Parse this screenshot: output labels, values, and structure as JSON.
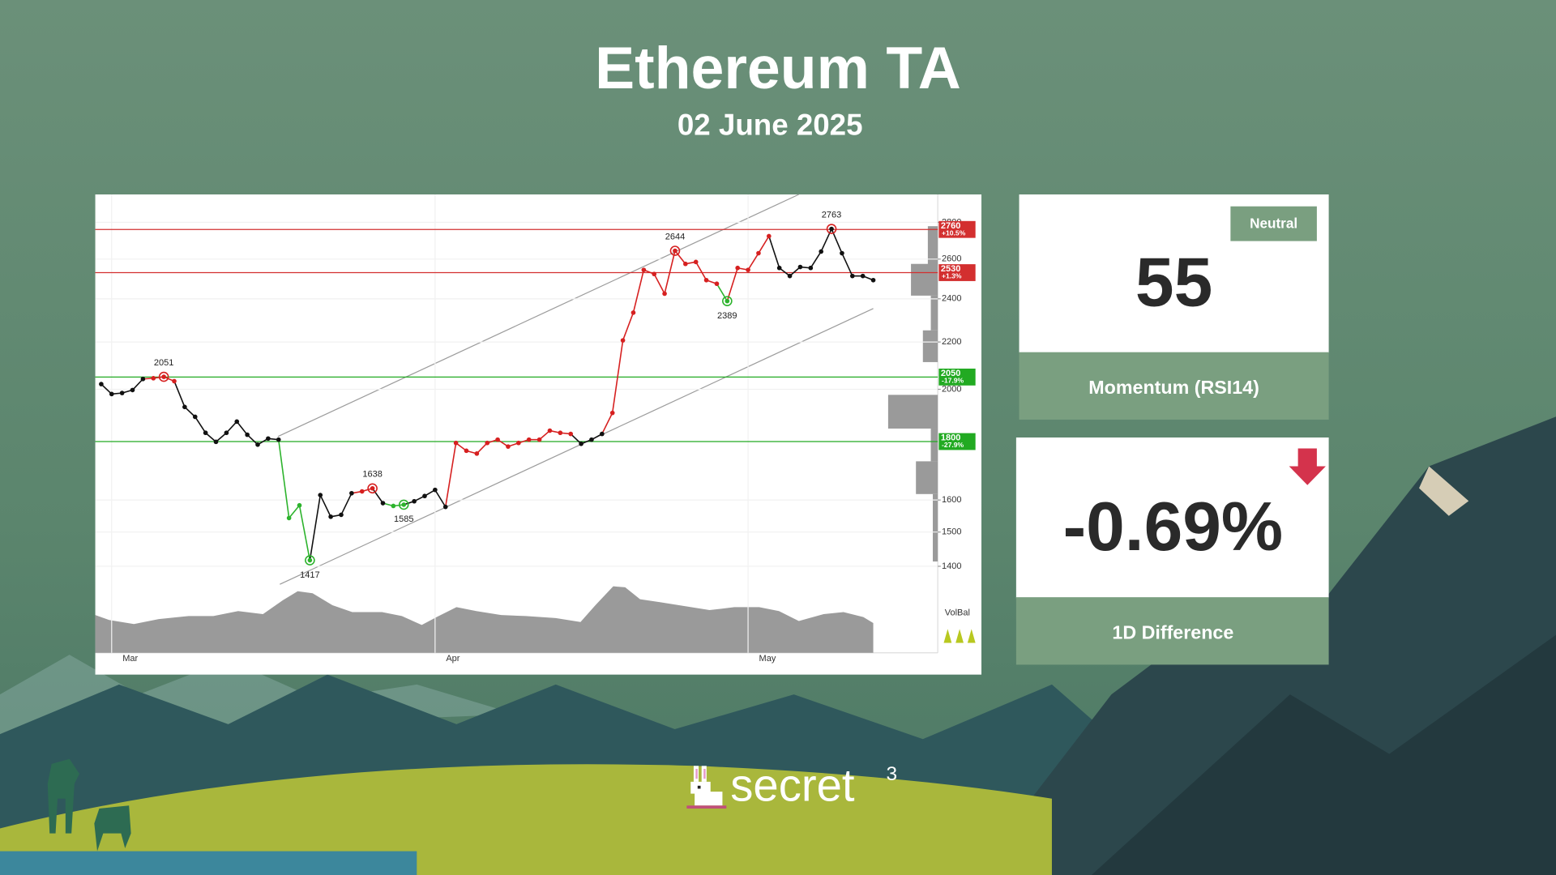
{
  "header": {
    "title": "Ethereum TA",
    "date": "02 June 2025"
  },
  "chart_data": {
    "type": "line",
    "categories": [
      null,
      "Mar",
      null,
      null,
      null,
      null,
      null,
      null,
      null,
      null,
      null,
      null,
      null,
      null,
      null,
      null,
      null,
      null,
      null,
      null,
      null,
      null,
      null,
      null,
      null,
      null,
      null,
      null,
      null,
      null,
      null,
      null,
      "Apr",
      null,
      null,
      null,
      null,
      null,
      null,
      null,
      null,
      null,
      null,
      null,
      null,
      null,
      null,
      null,
      null,
      null,
      null,
      null,
      null,
      null,
      null,
      null,
      null,
      null,
      null,
      null,
      null,
      null,
      "May",
      null,
      null,
      null,
      null,
      null,
      null,
      null,
      null,
      null,
      null,
      null,
      null
    ],
    "values": [
      2021,
      1981,
      1985,
      1997,
      2042,
      2045,
      2051,
      2033,
      1930,
      1892,
      1832,
      1799,
      1832,
      1874,
      1825,
      1789,
      1811,
      1807,
      1543,
      1583,
      1417,
      1616,
      1547,
      1553,
      1622,
      1628,
      1638,
      1590,
      1581,
      1585,
      1596,
      1613,
      1633,
      1578,
      1795,
      1767,
      1757,
      1795,
      1807,
      1782,
      1795,
      1807,
      1807,
      1840,
      1832,
      1828,
      1792,
      1807,
      1828,
      1907,
      2207,
      2334,
      2544,
      2523,
      2425,
      2644,
      2575,
      2585,
      2492,
      2474,
      2389,
      2554,
      2544,
      2631,
      2723,
      2554,
      2513,
      2559,
      2554,
      2640,
      2763,
      2631,
      2513,
      2513,
      2492
    ],
    "value_labels": [
      null,
      null,
      null,
      null,
      null,
      null,
      "2051",
      null,
      null,
      null,
      null,
      null,
      null,
      null,
      null,
      null,
      null,
      null,
      null,
      null,
      "1417",
      null,
      null,
      null,
      null,
      null,
      "1638",
      null,
      null,
      "1585",
      null,
      null,
      null,
      null,
      null,
      null,
      null,
      null,
      null,
      null,
      null,
      null,
      null,
      null,
      null,
      null,
      null,
      null,
      null,
      null,
      null,
      null,
      null,
      null,
      null,
      "2644",
      null,
      null,
      null,
      null,
      "2389",
      null,
      null,
      null,
      null,
      null,
      null,
      null,
      null,
      null,
      "2763",
      null,
      null,
      null,
      null
    ],
    "point_colors": [
      "#111111",
      "#111111",
      "#111111",
      "#111111",
      "#111111",
      "#d62020",
      "#d62020",
      "#d62020",
      "#111111",
      "#111111",
      "#111111",
      "#111111",
      "#111111",
      "#111111",
      "#111111",
      "#111111",
      "#111111",
      "#111111",
      "#2db32d",
      "#2db32d",
      "#2db32d",
      "#111111",
      "#111111",
      "#111111",
      "#111111",
      "#d62020",
      "#d62020",
      "#111111",
      "#2db32d",
      "#2db32d",
      "#111111",
      "#111111",
      "#111111",
      "#111111",
      "#d62020",
      "#d62020",
      "#d62020",
      "#d62020",
      "#d62020",
      "#d62020",
      "#d62020",
      "#d62020",
      "#d62020",
      "#d62020",
      "#d62020",
      "#d62020",
      "#111111",
      "#111111",
      "#111111",
      "#d62020",
      "#d62020",
      "#d62020",
      "#d62020",
      "#d62020",
      "#d62020",
      "#d62020",
      "#d62020",
      "#d62020",
      "#d62020",
      "#d62020",
      "#2db32d",
      "#d62020",
      "#d62020",
      "#d62020",
      "#d62020",
      "#111111",
      "#111111",
      "#111111",
      "#111111",
      "#111111",
      "#111111",
      "#111111",
      "#111111",
      "#111111",
      "#111111"
    ],
    "ylim": [
      1350,
      2950
    ],
    "yticks": [
      1400,
      1500,
      1600,
      2000,
      2200,
      2400,
      2600,
      2800
    ],
    "log_scale": true,
    "grid": true,
    "levels": [
      {
        "value": 2760,
        "change": "+10.5%",
        "color": "#d32f2f"
      },
      {
        "value": 2530,
        "change": "+1.3%",
        "color": "#d32f2f"
      },
      {
        "value": 2050,
        "change": "-17.9%",
        "color": "#22aa22"
      },
      {
        "value": 1800,
        "change": "-27.9%",
        "color": "#22aa22"
      }
    ],
    "volume_label": "VolBal"
  },
  "momentum": {
    "status": "Neutral",
    "value": 55,
    "label": "Momentum (RSI14)"
  },
  "difference": {
    "value": "-0.69%",
    "label": "1D Difference"
  },
  "brand": {
    "name": "secret",
    "superscript": "3"
  }
}
